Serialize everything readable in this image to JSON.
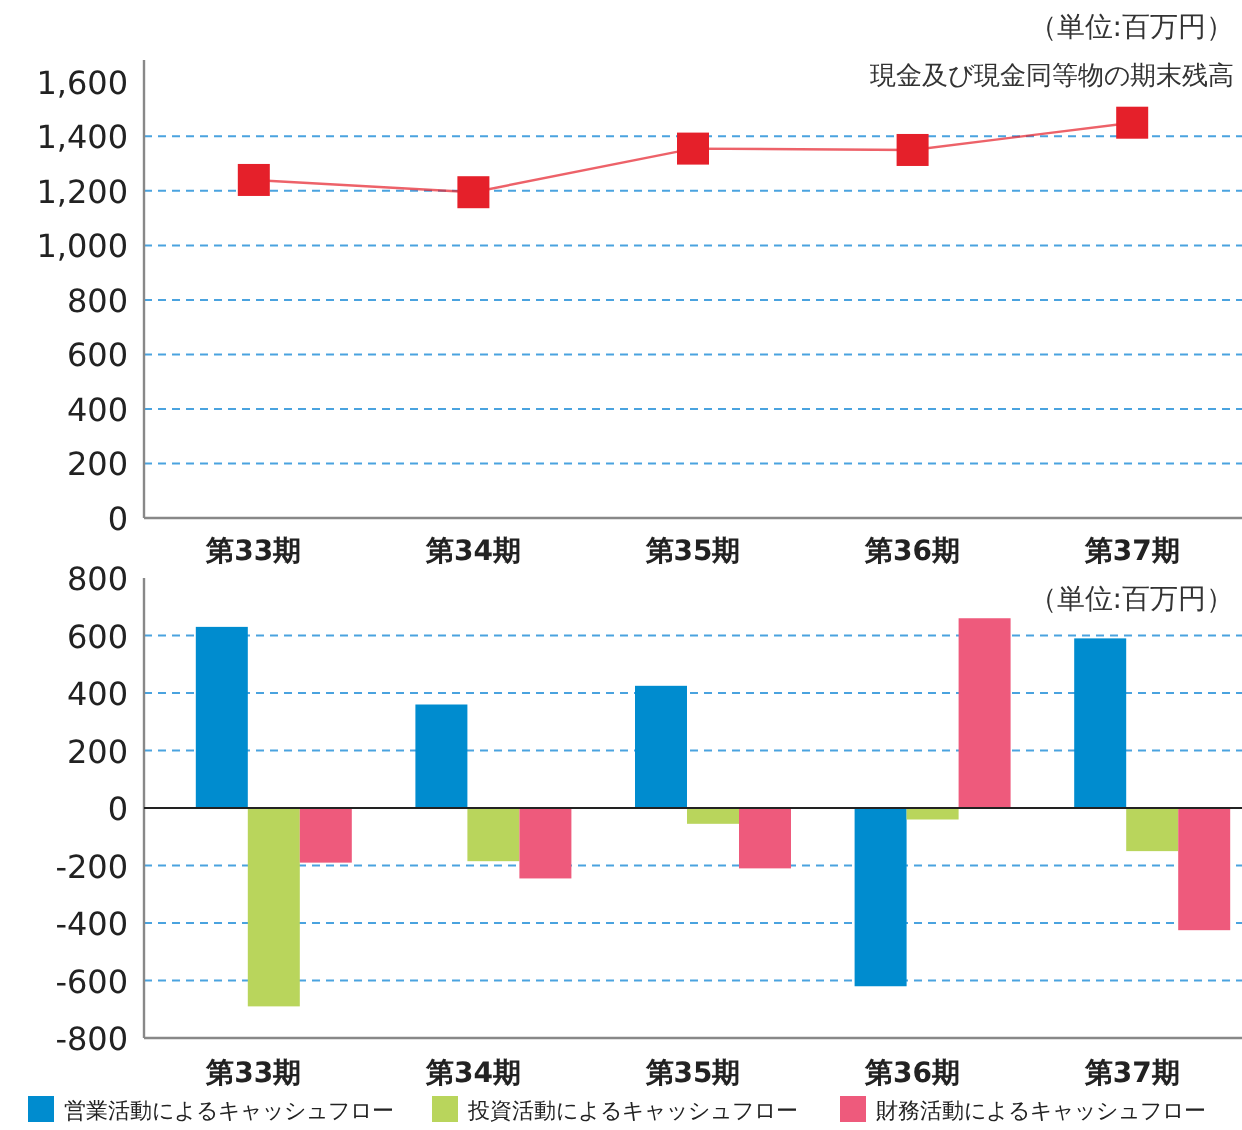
{
  "chart_data": [
    {
      "type": "line",
      "categories": [
        "第33期",
        "第34期",
        "第35期",
        "第36期",
        "第37期"
      ],
      "series": [
        {
          "name": "現金及び現金同等物の期末残高",
          "color": "#e5202a",
          "values": [
            1240,
            1195,
            1355,
            1350,
            1450
          ]
        }
      ],
      "ylim": [
        0,
        1680
      ],
      "yticks": [
        0,
        200,
        400,
        600,
        800,
        {
          "value": 1000,
          "label": "1,000"
        },
        {
          "value": 1200,
          "label": "1,200"
        },
        {
          "value": 1400,
          "label": "1,400"
        },
        {
          "value": 1600,
          "label": "1,600"
        }
      ],
      "grid": "y",
      "marker": "square",
      "legend": "top right",
      "annotations": [
        "（単位:百万円）"
      ]
    },
    {
      "type": "bar",
      "categories": [
        "第33期",
        "第34期",
        "第35期",
        "第36期",
        "第37期"
      ],
      "series": [
        {
          "name": "営業活動によるキャッシュフロー",
          "color": "#008ccf",
          "values": [
            630,
            360,
            425,
            -620,
            590
          ]
        },
        {
          "name": "投資活動によるキャッシュフロー",
          "color": "#b9d55c",
          "values": [
            -690,
            -185,
            -55,
            -40,
            -150
          ]
        },
        {
          "name": "財務活動によるキャッシュフロー",
          "color": "#ee5a7c",
          "values": [
            -190,
            -245,
            -210,
            660,
            -425
          ]
        }
      ],
      "ylim": [
        -800,
        800
      ],
      "yticks": [
        -800,
        -600,
        -400,
        -200,
        0,
        200,
        400,
        600,
        800
      ],
      "grid": "y",
      "legend": "bottom",
      "annotations": [
        "（単位:百万円）"
      ]
    }
  ]
}
